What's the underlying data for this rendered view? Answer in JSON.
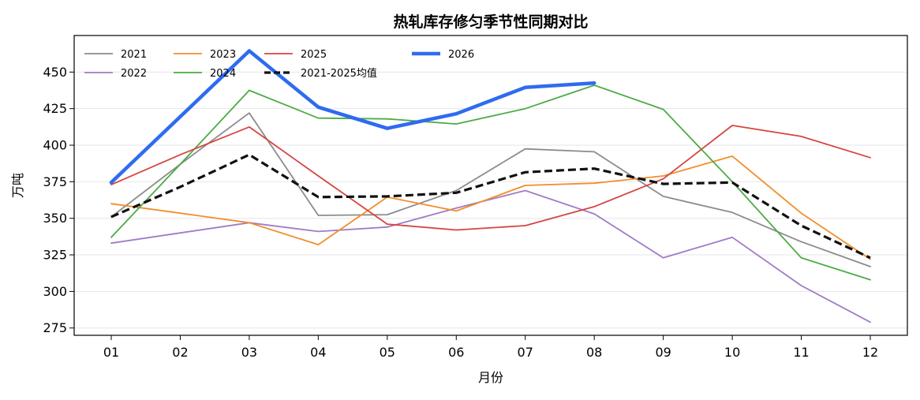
{
  "chart_data": {
    "type": "line",
    "title": "热轧库存修匀季节性同期对比",
    "xlabel": "月份",
    "ylabel": "万吨",
    "categories": [
      "01",
      "02",
      "03",
      "04",
      "05",
      "06",
      "07",
      "08",
      "09",
      "10",
      "11",
      "12"
    ],
    "ylim": [
      270,
      475
    ],
    "yticks": [
      275,
      300,
      325,
      350,
      375,
      400,
      425,
      450
    ],
    "grid": "horizontal",
    "legend_position": "top-left",
    "series": [
      {
        "name": "2021",
        "color": "#8c8c8c",
        "width": 1.8,
        "dash": "",
        "values": [
          351,
          387,
          422,
          352,
          352.5,
          369,
          397.5,
          395.5,
          365,
          354,
          334,
          317
        ]
      },
      {
        "name": "2022",
        "color": "#a07cc5",
        "width": 1.8,
        "dash": "",
        "values": [
          333,
          340,
          347,
          341,
          344,
          357,
          369,
          353,
          323,
          337,
          304,
          279
        ]
      },
      {
        "name": "2023",
        "color": "#f28e2b",
        "width": 1.8,
        "dash": "",
        "values": [
          360,
          353.5,
          347,
          332,
          364.5,
          355,
          372.5,
          374,
          379,
          392.5,
          353.5,
          322
        ]
      },
      {
        "name": "2024",
        "color": "#4cab45",
        "width": 1.8,
        "dash": "",
        "values": [
          337,
          387,
          437.5,
          418.5,
          418,
          414.5,
          425,
          441,
          424.5,
          375,
          323,
          308
        ]
      },
      {
        "name": "2025",
        "color": "#d64541",
        "width": 1.8,
        "dash": "",
        "values": [
          373,
          393.5,
          412.5,
          379,
          346,
          342,
          345,
          358,
          377,
          413.5,
          406,
          391.5
        ]
      },
      {
        "name": "2021-2025均值",
        "color": "#111111",
        "width": 3.2,
        "dash": "10,5",
        "values": [
          351,
          371.5,
          393.5,
          364.5,
          365,
          367.5,
          381.5,
          384,
          373.5,
          374.5,
          345,
          323
        ]
      },
      {
        "name": "2026",
        "color": "#2f6bf0",
        "width": 4.5,
        "dash": "",
        "values": [
          374.5,
          null,
          464.5,
          426,
          411.5,
          421.5,
          439.5,
          442.5,
          null,
          null,
          null,
          null
        ]
      }
    ],
    "legend_order": [
      "2021",
      "2022",
      "2023",
      "2024",
      "2025",
      "2021-2025均值",
      "2026"
    ]
  }
}
